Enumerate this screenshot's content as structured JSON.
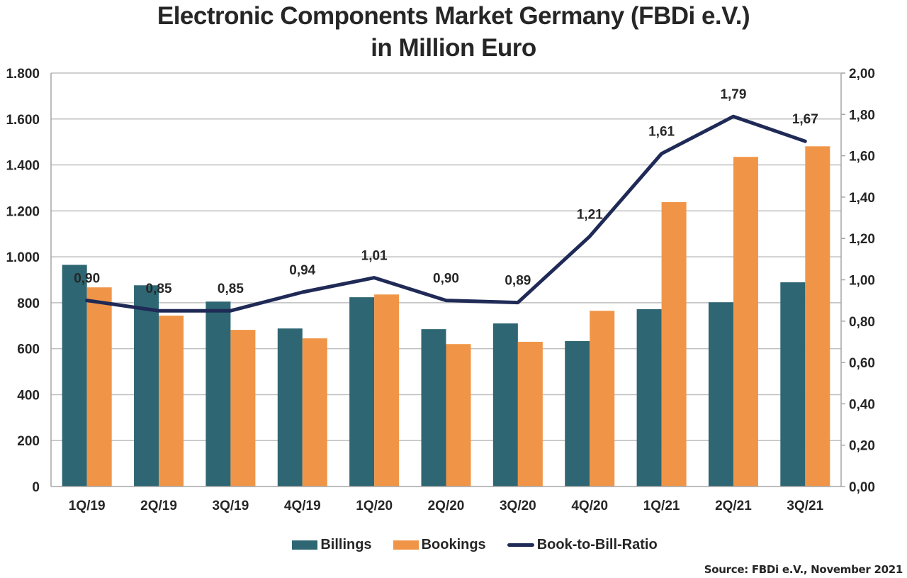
{
  "chart_data": {
    "type": "bar",
    "title": "Electronic Components Market Germany (FBDi e.V.)",
    "subtitle": "in Million Euro",
    "categories": [
      "1Q/19",
      "2Q/19",
      "3Q/19",
      "4Q/19",
      "1Q/20",
      "2Q/20",
      "3Q/20",
      "4Q/20",
      "1Q/21",
      "2Q/21",
      "3Q/21"
    ],
    "series": [
      {
        "name": "Billings",
        "type": "bar",
        "axis": "left",
        "color": "#2e6673",
        "values": [
          965,
          876,
          805,
          688,
          824,
          685,
          710,
          633,
          772,
          802,
          889
        ]
      },
      {
        "name": "Bookings",
        "type": "bar",
        "axis": "left",
        "color": "#f09547",
        "values": [
          867,
          744,
          682,
          645,
          836,
          620,
          630,
          765,
          1238,
          1435,
          1481
        ]
      },
      {
        "name": "Book-to-Bill-Ratio",
        "type": "line",
        "axis": "right",
        "color": "#1f2a56",
        "values": [
          0.9,
          0.85,
          0.85,
          0.94,
          1.01,
          0.9,
          0.89,
          1.21,
          1.61,
          1.79,
          1.67
        ],
        "labels": [
          "0,90",
          "0,85",
          "0,85",
          "0,94",
          "1,01",
          "0,90",
          "0,89",
          "1,21",
          "1,61",
          "1,79",
          "1,67"
        ]
      }
    ],
    "ylim_left": [
      0,
      1800
    ],
    "yticks_left": [
      0,
      200,
      400,
      600,
      800,
      1000,
      1200,
      1400,
      1600,
      1800
    ],
    "ytick_labels_left": [
      "0",
      "200",
      "400",
      "600",
      "800",
      "1.000",
      "1.200",
      "1.400",
      "1.600",
      "1.800"
    ],
    "ylim_right": [
      0,
      2.0
    ],
    "yticks_right": [
      0,
      0.2,
      0.4,
      0.6,
      0.8,
      1.0,
      1.2,
      1.4,
      1.6,
      1.8,
      2.0
    ],
    "ytick_labels_right": [
      "0,00",
      "0,20",
      "0,40",
      "0,60",
      "0,80",
      "1,00",
      "1,20",
      "1,40",
      "1,60",
      "1,80",
      "2,00"
    ],
    "xlabel": "",
    "ylabel": "",
    "grid": true,
    "legend_position": "bottom"
  },
  "legend": {
    "items": [
      {
        "label": "Billings",
        "color": "#2e6673",
        "kind": "box"
      },
      {
        "label": "Bookings",
        "color": "#f09547",
        "kind": "box"
      },
      {
        "label": "Book-to-Bill-Ratio",
        "color": "#1f2a56",
        "kind": "line"
      }
    ]
  },
  "source": "Source: FBDi e.V., November 2021"
}
